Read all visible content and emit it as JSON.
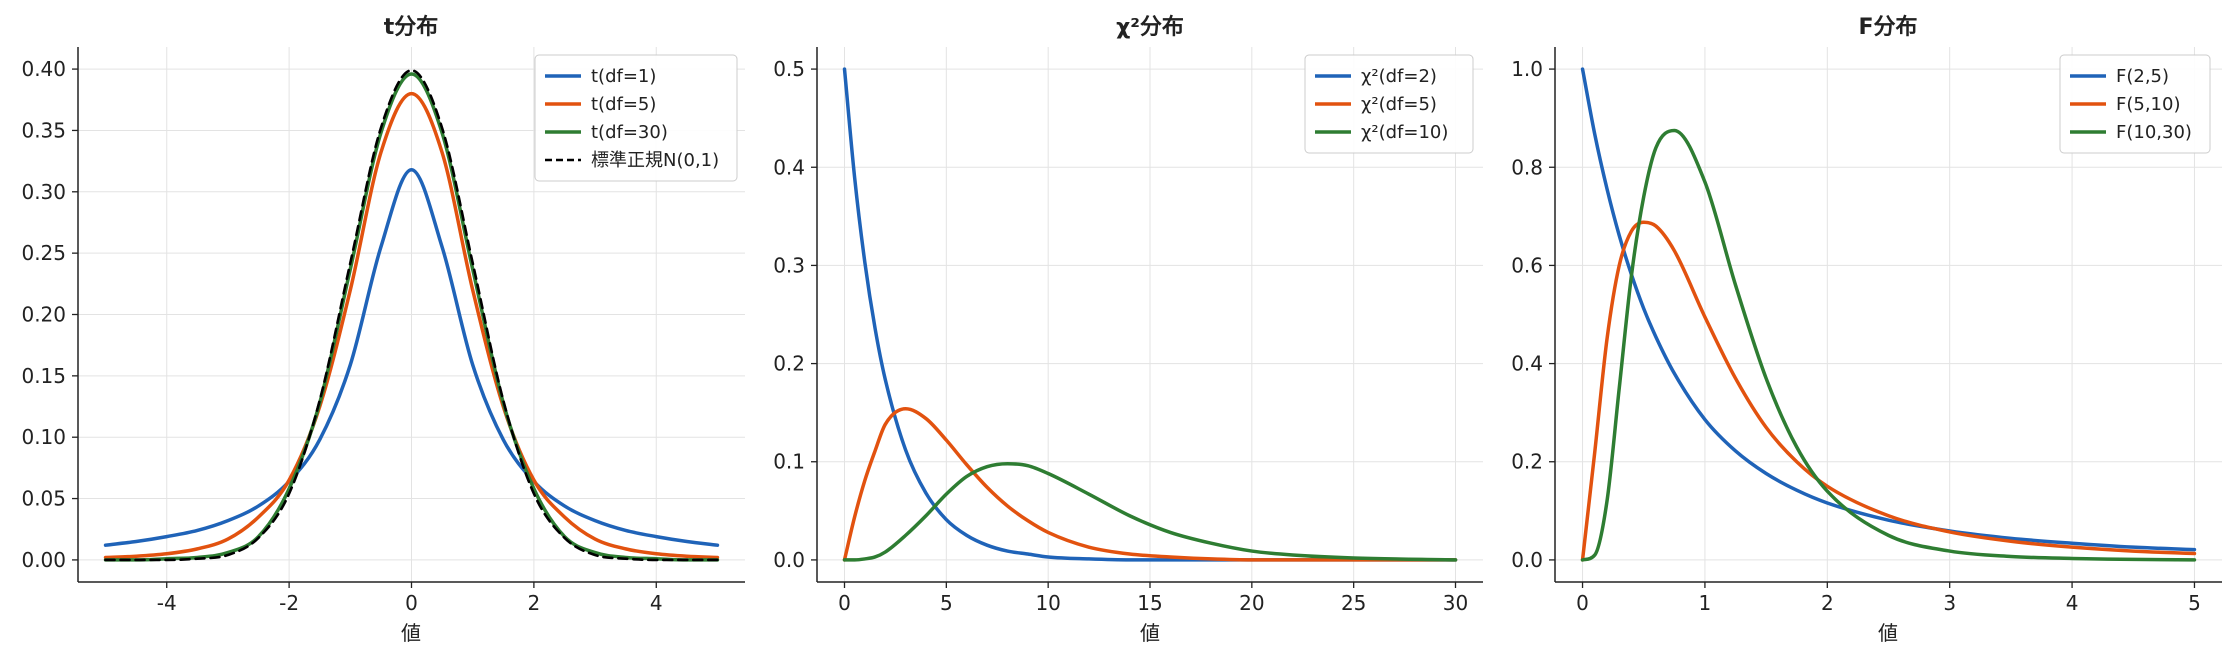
{
  "colors": {
    "blue": "#1f63b8",
    "orange": "#e2520f",
    "green": "#2e7d32",
    "normal": "#000000"
  },
  "chart_data": [
    {
      "type": "line",
      "title": "t分布",
      "xlabel": "値",
      "ylabel": "",
      "xlim": [
        -5,
        5
      ],
      "ylim": [
        0,
        0.4
      ],
      "x_ticks": [
        -4,
        -2,
        0,
        2,
        4
      ],
      "x_tick_labels": [
        "-4",
        "-2",
        "0",
        "2",
        "4"
      ],
      "y_ticks": [
        0,
        0.05,
        0.1,
        0.15,
        0.2,
        0.25,
        0.3,
        0.35,
        0.4
      ],
      "y_tick_labels": [
        "0.00",
        "0.05",
        "0.10",
        "0.15",
        "0.20",
        "0.25",
        "0.30",
        "0.35",
        "0.40"
      ],
      "grid": true,
      "legend_position": "top-right",
      "x": [
        -5,
        -4.5,
        -4,
        -3.5,
        -3,
        -2.5,
        -2,
        -1.5,
        -1,
        -0.5,
        0,
        0.5,
        1,
        1.5,
        2,
        2.5,
        3,
        3.5,
        4,
        4.5,
        5
      ],
      "series": [
        {
          "name": "t(df=1)",
          "color": "blue",
          "values": [
            0.012,
            0.015,
            0.019,
            0.024,
            0.032,
            0.044,
            0.064,
            0.098,
            0.159,
            0.255,
            0.318,
            0.255,
            0.159,
            0.098,
            0.064,
            0.044,
            0.032,
            0.024,
            0.019,
            0.015,
            0.012
          ]
        },
        {
          "name": "t(df=5)",
          "color": "orange",
          "values": [
            0.002,
            0.003,
            0.005,
            0.009,
            0.017,
            0.035,
            0.065,
            0.125,
            0.22,
            0.332,
            0.38,
            0.332,
            0.22,
            0.125,
            0.065,
            0.035,
            0.017,
            0.009,
            0.005,
            0.003,
            0.002
          ]
        },
        {
          "name": "t(df=30)",
          "color": "green",
          "values": [
            0.0,
            0.0,
            0.001,
            0.002,
            0.006,
            0.019,
            0.058,
            0.128,
            0.237,
            0.348,
            0.396,
            0.348,
            0.237,
            0.128,
            0.058,
            0.019,
            0.006,
            0.002,
            0.001,
            0.0,
            0.0
          ]
        },
        {
          "name": "標準正規N(0,1)",
          "color": "normal",
          "dashed": true,
          "values": [
            0.0,
            0.0,
            0.0,
            0.001,
            0.004,
            0.018,
            0.054,
            0.13,
            0.242,
            0.352,
            0.399,
            0.352,
            0.242,
            0.13,
            0.054,
            0.018,
            0.004,
            0.001,
            0.0,
            0.0,
            0.0
          ]
        }
      ]
    },
    {
      "type": "line",
      "title": "χ²分布",
      "xlabel": "値",
      "ylabel": "",
      "xlim": [
        0,
        30
      ],
      "ylim": [
        0,
        0.5
      ],
      "x_ticks": [
        0,
        5,
        10,
        15,
        20,
        25,
        30
      ],
      "x_tick_labels": [
        "0",
        "5",
        "10",
        "15",
        "20",
        "25",
        "30"
      ],
      "y_ticks": [
        0,
        0.1,
        0.2,
        0.3,
        0.4,
        0.5
      ],
      "y_tick_labels": [
        "0.0",
        "0.1",
        "0.2",
        "0.3",
        "0.4",
        "0.5"
      ],
      "grid": true,
      "legend_position": "top-right",
      "x": [
        0,
        0.5,
        1,
        1.5,
        2,
        3,
        4,
        5,
        6,
        7,
        8,
        9,
        10,
        12,
        14,
        16,
        18,
        20,
        22,
        25,
        30
      ],
      "series": [
        {
          "name": "χ²(df=2)",
          "color": "blue",
          "values": [
            0.5,
            0.389,
            0.303,
            0.236,
            0.184,
            0.112,
            0.068,
            0.041,
            0.025,
            0.015,
            0.009,
            0.006,
            0.003,
            0.001,
            0.0,
            0.0,
            0.0,
            0.0,
            0.0,
            0.0,
            0.0
          ]
        },
        {
          "name": "χ²(df=5)",
          "color": "orange",
          "values": [
            0.0,
            0.044,
            0.081,
            0.111,
            0.138,
            0.154,
            0.144,
            0.122,
            0.097,
            0.074,
            0.055,
            0.04,
            0.028,
            0.013,
            0.006,
            0.003,
            0.001,
            0.0,
            0.0,
            0.0,
            0.0
          ]
        },
        {
          "name": "χ²(df=10)",
          "color": "green",
          "values": [
            0.0,
            0.0,
            0.001,
            0.003,
            0.008,
            0.025,
            0.045,
            0.067,
            0.085,
            0.095,
            0.098,
            0.096,
            0.088,
            0.067,
            0.045,
            0.028,
            0.017,
            0.009,
            0.005,
            0.002,
            0.0
          ]
        }
      ]
    },
    {
      "type": "line",
      "title": "F分布",
      "xlabel": "値",
      "ylabel": "",
      "xlim": [
        0,
        5
      ],
      "ylim": [
        0,
        1.0
      ],
      "x_ticks": [
        0,
        1,
        2,
        3,
        4,
        5
      ],
      "x_tick_labels": [
        "0",
        "1",
        "2",
        "3",
        "4",
        "5"
      ],
      "y_ticks": [
        0,
        0.2,
        0.4,
        0.6,
        0.8,
        1.0
      ],
      "y_tick_labels": [
        "0.0",
        "0.2",
        "0.4",
        "0.6",
        "0.8",
        "1.0"
      ],
      "grid": true,
      "legend_position": "top-right",
      "x": [
        0,
        0.1,
        0.2,
        0.3,
        0.4,
        0.5,
        0.6,
        0.75,
        1.0,
        1.25,
        1.5,
        1.75,
        2.0,
        2.5,
        3.0,
        3.5,
        4.0,
        4.5,
        5.0
      ],
      "series": [
        {
          "name": "F(2,5)",
          "color": "blue",
          "values": [
            1.0,
            0.867,
            0.756,
            0.661,
            0.581,
            0.512,
            0.454,
            0.38,
            0.286,
            0.222,
            0.176,
            0.142,
            0.116,
            0.081,
            0.059,
            0.044,
            0.034,
            0.026,
            0.021
          ]
        },
        {
          "name": "F(5,10)",
          "color": "orange",
          "values": [
            0.0,
            0.22,
            0.45,
            0.6,
            0.67,
            0.688,
            0.68,
            0.63,
            0.495,
            0.37,
            0.27,
            0.2,
            0.15,
            0.09,
            0.057,
            0.038,
            0.026,
            0.018,
            0.013
          ]
        },
        {
          "name": "F(10,30)",
          "color": "green",
          "values": [
            0.0,
            0.01,
            0.12,
            0.35,
            0.58,
            0.74,
            0.84,
            0.875,
            0.77,
            0.56,
            0.37,
            0.23,
            0.14,
            0.05,
            0.018,
            0.007,
            0.003,
            0.001,
            0.0
          ]
        }
      ]
    }
  ]
}
